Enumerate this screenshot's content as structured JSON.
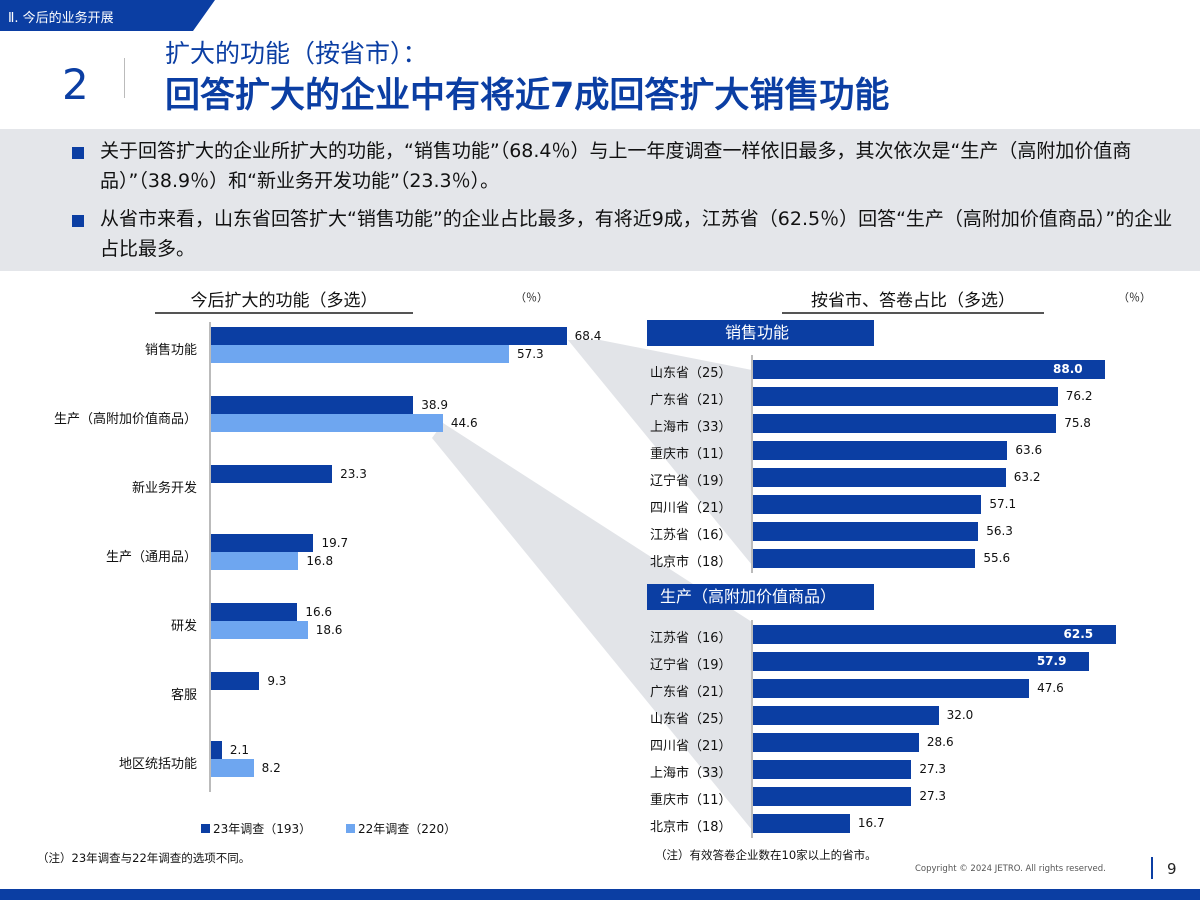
{
  "header": {
    "section_tag": "Ⅱ. 今后的业务开展",
    "number": "2",
    "subtitle": "扩大的功能（按省市）：",
    "title": "回答扩大的企业中有将近7成回答扩大销售功能"
  },
  "summary": [
    "关于回答扩大的企业所扩大的功能，“销售功能”（68.4％）与上一年度调查一样依旧最多，其次依次是“生产（高附加价值商品）”（38.9％）和“新业务开发功能”（23.3％）。",
    "从省市来看，山东省回答扩大“销售功能”的企业占比最多，有将近9成，江苏省（62.5％）回答“生产（高附加价值商品）”的企业占比最多。"
  ],
  "left_chart": {
    "title": "今后扩大的功能（多选）",
    "unit": "（％）",
    "note": "（注）23年调查与22年调查的选项不同。"
  },
  "right_chart": {
    "title": "按省市、答卷占比（多选）",
    "unit": "（％）",
    "note": "（注）有效答卷企业数在10家以上的省市。"
  },
  "footer": {
    "copyright": "Copyright © 2024 JETRO. All rights reserved.",
    "page": "9"
  },
  "chart_data": [
    {
      "type": "bar",
      "orientation": "horizontal",
      "title": "今后扩大的功能（多选）",
      "unit": "（％）",
      "categories": [
        "销售功能",
        "生产（高附加价值商品）",
        "新业务开发",
        "生产（通用品）",
        "研发",
        "客服",
        "地区统括功能"
      ],
      "series": [
        {
          "name": "23年调查（193）",
          "color": "#0b3ea3",
          "values": [
            68.4,
            38.9,
            23.3,
            19.7,
            16.6,
            9.3,
            2.1
          ]
        },
        {
          "name": "22年调查（220）",
          "color": "#6ea6f0",
          "values": [
            57.3,
            44.6,
            null,
            16.8,
            18.6,
            null,
            8.2
          ]
        }
      ],
      "value_labels": [
        [
          "68.4",
          "38.9",
          "23.3",
          "19.7",
          "16.6",
          "9.3",
          "2.1"
        ],
        [
          "57.3",
          "44.6",
          null,
          "16.8",
          "18.6",
          null,
          "8.2"
        ]
      ],
      "xlim": [
        0,
        100
      ]
    },
    {
      "type": "bar",
      "orientation": "horizontal",
      "title": "销售功能",
      "color": "#0b3ea3",
      "categories": [
        "山东省（25）",
        "广东省（21）",
        "上海市（33）",
        "重庆市（11）",
        "辽宁省（19）",
        "四川省（21）",
        "江苏省（16）",
        "北京市（18）"
      ],
      "values": [
        88.0,
        76.2,
        75.8,
        63.6,
        63.2,
        57.1,
        56.3,
        55.6
      ],
      "value_labels": [
        "88.0",
        "76.2",
        "75.8",
        "63.6",
        "63.2",
        "57.1",
        "56.3",
        "55.6"
      ],
      "xlim": [
        0,
        100
      ]
    },
    {
      "type": "bar",
      "orientation": "horizontal",
      "title": "生产（高附加价值商品）",
      "color": "#0b3ea3",
      "categories": [
        "江苏省（16）",
        "辽宁省（19）",
        "广东省（21）",
        "山东省（25）",
        "四川省（21）",
        "上海市（33）",
        "重庆市（11）",
        "北京市（18）"
      ],
      "values": [
        62.5,
        57.9,
        47.6,
        32.0,
        28.6,
        27.3,
        27.3,
        16.7
      ],
      "value_labels": [
        "62.5",
        "57.9",
        "47.6",
        "32.0",
        "28.6",
        "27.3",
        "27.3",
        "16.7"
      ],
      "xlim": [
        0,
        62.5
      ]
    }
  ]
}
